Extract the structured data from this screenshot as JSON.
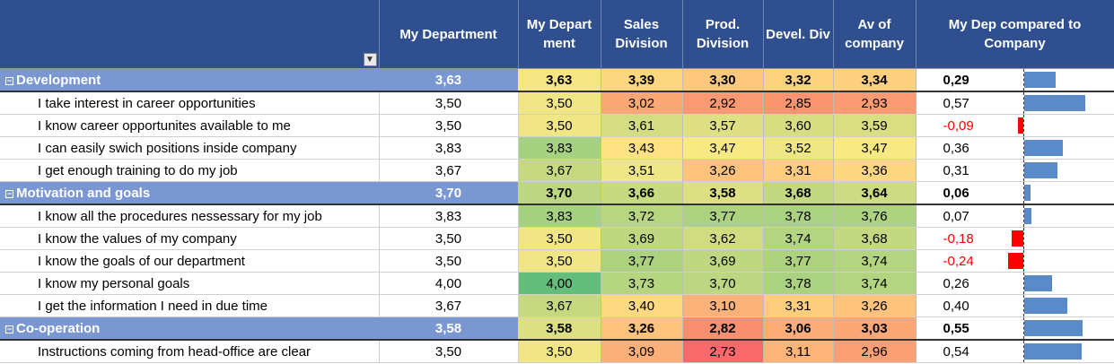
{
  "header": {
    "label": "",
    "my_department": "My Department",
    "my_department_col": "My Department",
    "sales": "Sales Division",
    "prod": "Prod. Division",
    "devel": "Devel. Div",
    "average": "Av of company",
    "compare": "My Dep compared to Company"
  },
  "colors": {
    "header_bg": "#2f4f8f",
    "group_bg": "#7a97d2",
    "bar_pos": "#5b8ac9",
    "bar_neg": "#ff0000"
  },
  "rows": [
    {
      "type": "group",
      "label": "Development",
      "dep": "3,63",
      "vals": [
        "3,63",
        "3,39",
        "3,30",
        "3,32",
        "3,34"
      ],
      "colors": [
        "#f6e683",
        "#fdd77f",
        "#fdc87d",
        "#fed27f",
        "#fed07f"
      ],
      "diff": "0,29",
      "diff_value": 0.29
    },
    {
      "type": "item",
      "label": "I take interest in career opportunities",
      "dep": "3,50",
      "vals": [
        "3,50",
        "3,02",
        "2,92",
        "2,85",
        "2,93"
      ],
      "colors": [
        "#f1e685",
        "#fba876",
        "#fb9a72",
        "#f99470",
        "#fb9b73"
      ],
      "diff": "0,57",
      "diff_value": 0.57
    },
    {
      "type": "item",
      "label": "I know career opportunites available to me",
      "dep": "3,50",
      "vals": [
        "3,50",
        "3,61",
        "3,57",
        "3,60",
        "3,59"
      ],
      "colors": [
        "#f1e685",
        "#d4dd82",
        "#dfe083",
        "#d7de82",
        "#d9de82"
      ],
      "diff": "-0,09",
      "diff_value": -0.09
    },
    {
      "type": "item",
      "label": "I can easily swich positions inside company",
      "dep": "3,83",
      "vals": [
        "3,83",
        "3,43",
        "3,47",
        "3,52",
        "3,47"
      ],
      "colors": [
        "#a5d180",
        "#ffe284",
        "#f9e984",
        "#eee685",
        "#f9e984"
      ],
      "diff": "0,36",
      "diff_value": 0.36
    },
    {
      "type": "item",
      "label": "I get enough training to do my job",
      "dep": "3,67",
      "vals": [
        "3,67",
        "3,51",
        "3,26",
        "3,31",
        "3,36"
      ],
      "colors": [
        "#c6d981",
        "#efe685",
        "#fdc37c",
        "#fecd7e",
        "#fed880"
      ],
      "diff": "0,31",
      "diff_value": 0.31
    },
    {
      "type": "group",
      "label": "Motivation and goals",
      "dep": "3,70",
      "vals": [
        "3,70",
        "3,66",
        "3,58",
        "3,68",
        "3,64"
      ],
      "colors": [
        "#bcd681",
        "#c8da81",
        "#dddf83",
        "#c3d881",
        "#cddb82"
      ],
      "diff": "0,06",
      "diff_value": 0.06
    },
    {
      "type": "item",
      "label": "I know all the procedures nessessary for my job",
      "dep": "3,83",
      "vals": [
        "3,83",
        "3,72",
        "3,77",
        "3,78",
        "3,76"
      ],
      "colors": [
        "#a5d180",
        "#b8d580",
        "#acd280",
        "#aad280",
        "#aed380"
      ],
      "diff": "0,07",
      "diff_value": 0.07
    },
    {
      "type": "item",
      "label": "I know the values of my company",
      "dep": "3,50",
      "vals": [
        "3,50",
        "3,69",
        "3,62",
        "3,74",
        "3,68"
      ],
      "colors": [
        "#f1e685",
        "#c0d781",
        "#d1dc82",
        "#b3d480",
        "#c3d881"
      ],
      "diff": "-0,18",
      "diff_value": -0.18
    },
    {
      "type": "item",
      "label": "I know the goals of our department",
      "dep": "3,50",
      "vals": [
        "3,50",
        "3,77",
        "3,69",
        "3,77",
        "3,74"
      ],
      "colors": [
        "#f1e685",
        "#acd280",
        "#c0d781",
        "#acd280",
        "#b3d480"
      ],
      "diff": "-0,24",
      "diff_value": -0.24
    },
    {
      "type": "item",
      "label": "I know my personal goals",
      "dep": "4,00",
      "vals": [
        "4,00",
        "3,73",
        "3,70",
        "3,78",
        "3,74"
      ],
      "colors": [
        "#63be7b",
        "#b6d580",
        "#bcd681",
        "#aad280",
        "#b3d480"
      ],
      "diff": "0,26",
      "diff_value": 0.26
    },
    {
      "type": "item",
      "label": "I get the information I need in due time",
      "dep": "3,67",
      "vals": [
        "3,67",
        "3,40",
        "3,10",
        "3,31",
        "3,26"
      ],
      "colors": [
        "#c6d981",
        "#fed981",
        "#fbb279",
        "#fecd7e",
        "#fdc37c"
      ],
      "diff": "0,40",
      "diff_value": 0.4
    },
    {
      "type": "group",
      "label": "Co-operation",
      "dep": "3,58",
      "vals": [
        "3,58",
        "3,26",
        "2,82",
        "3,06",
        "3,03"
      ],
      "colors": [
        "#dddf83",
        "#fdc37c",
        "#f8906f",
        "#fcac77",
        "#fba876"
      ],
      "diff": "0,55",
      "diff_value": 0.55
    },
    {
      "type": "item",
      "label": "Instructions coming from head-office are clear",
      "dep": "3,50",
      "vals": [
        "3,50",
        "3,09",
        "2,73",
        "3,11",
        "2,96"
      ],
      "colors": [
        "#f1e685",
        "#fbb079",
        "#f8696b",
        "#fcb479",
        "#fb9f74"
      ],
      "diff": "0,54",
      "diff_value": 0.54
    }
  ]
}
